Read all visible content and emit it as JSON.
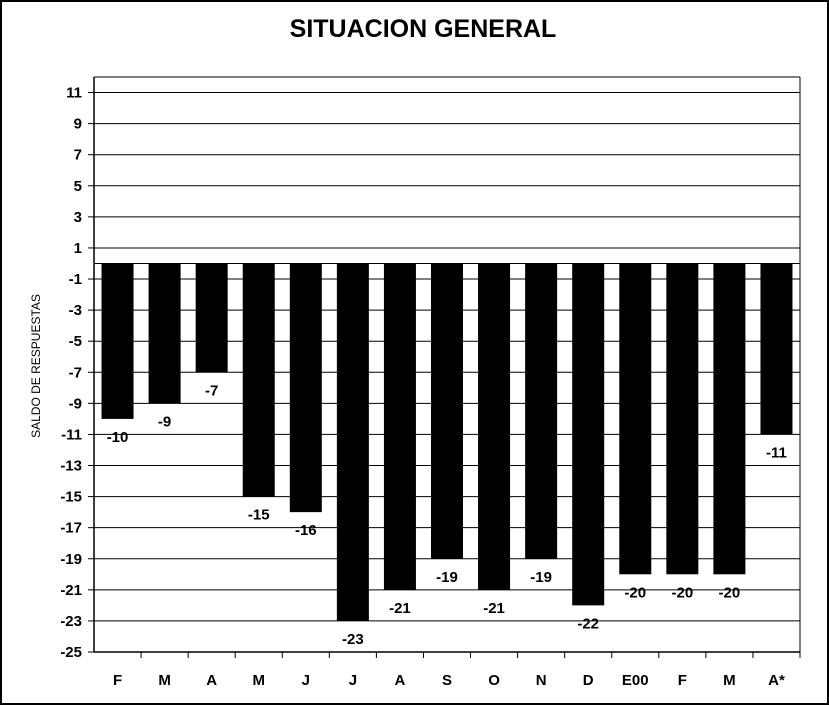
{
  "chart_data": {
    "type": "bar",
    "title": "SITUACION GENERAL",
    "ylabel": "SALDO DE RESPUESTAS",
    "xlabel": "",
    "categories": [
      "F",
      "M",
      "A",
      "M",
      "J",
      "J",
      "A",
      "S",
      "O",
      "N",
      "D",
      "E00",
      "F",
      "M",
      "A*"
    ],
    "values": [
      -10,
      -9,
      -7,
      -15,
      -16,
      -23,
      -21,
      -19,
      -21,
      -19,
      -22,
      -20,
      -20,
      -20,
      -11
    ],
    "data_labels": [
      "-10",
      "-9",
      "-7",
      "-15",
      "-16",
      "-23",
      "-21",
      "-19",
      "-21",
      "-19",
      "-22",
      "-20",
      "-20",
      "-20",
      "-11"
    ],
    "ylim": [
      -25,
      12
    ],
    "yticks": [
      11,
      9,
      7,
      5,
      3,
      1,
      -1,
      -3,
      -5,
      -7,
      -9,
      -11,
      -13,
      -15,
      -17,
      -19,
      -21,
      -23,
      -25
    ],
    "ytick_labels": [
      "11",
      "9",
      "7",
      "5",
      "3",
      "1",
      "-1",
      "-3",
      "-5",
      "-7",
      "-9",
      "-11",
      "-13",
      "-15",
      "-17",
      "-19",
      "-21",
      "-23",
      "-25"
    ],
    "grid": true,
    "bar_color": "#000000",
    "background": "#ffffff"
  }
}
